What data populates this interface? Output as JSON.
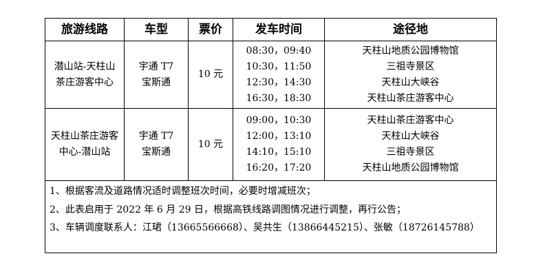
{
  "headers": [
    "旅游线路",
    "车型",
    "票价",
    "发车时间",
    "途径地"
  ],
  "rows": [
    {
      "route": "潜山站-天柱山茶庄游客中心",
      "vehicle": [
        "宇通 T7",
        "宝斯通"
      ],
      "price": "10 元",
      "times": [
        "08:30，09:40",
        "10:30，11:50",
        "12:30，14:30",
        "16:30，18:30"
      ],
      "stops": [
        "天柱山地质公园博物馆",
        "三祖寺景区",
        "天柱山大峡谷",
        "天柱山茶庄游客中心"
      ]
    },
    {
      "route": "天柱山茶庄游客中心-潜山站",
      "vehicle": [
        "宇通 T7",
        "宝斯通"
      ],
      "price": "10 元",
      "times": [
        "09:00，10:30",
        "12:00，13:10",
        "14:10，15:10",
        "16:20，17:20"
      ],
      "stops": [
        "天柱山茶庄游客中心",
        "天柱山大峡谷",
        "三祖寺景区",
        "天柱山地质公园博物馆"
      ]
    }
  ],
  "notes": [
    "1、根据客流及道路情况适时调整班次时间，必要时增减班次；",
    "2、此表启用于 2022 年 6 月 29 日，根据高铁线路调图情况进行调整，再行公告；",
    "3、车辆调度联系人：江珺（13665566668）、吴共生（13866445215）、张敏（18726145788）"
  ]
}
